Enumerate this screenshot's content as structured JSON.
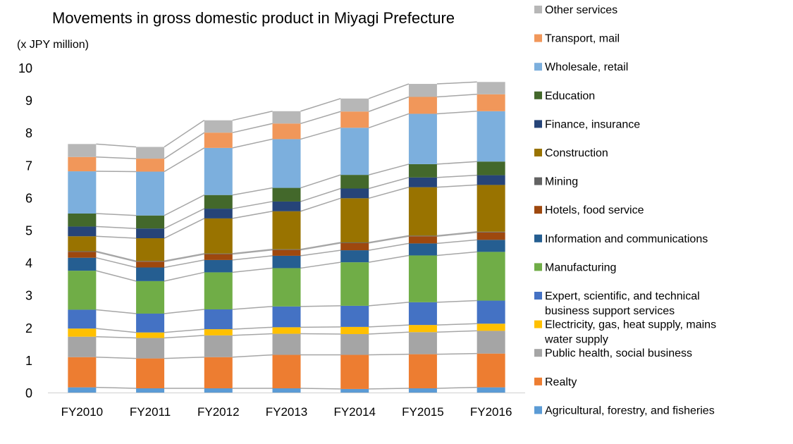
{
  "chart_data": {
    "type": "bar",
    "stacked": true,
    "series_lines": true,
    "title": "Movements in gross domestic product in Miyagi Prefecture",
    "unit_label": "(x JPY million)",
    "xlabel": "",
    "ylabel": "",
    "ylim": [
      0,
      10
    ],
    "yticks": [
      "0",
      "1",
      "2",
      "3",
      "4",
      "5",
      "6",
      "7",
      "8",
      "9",
      "10"
    ],
    "grid": false,
    "legend_position": "right",
    "categories": [
      "FY2010",
      "FY2011",
      "FY2012",
      "FY2013",
      "FY2014",
      "FY2015",
      "FY2016"
    ],
    "series": [
      {
        "name": "Agricultural, forestry, and fisheries",
        "color": "#5B9BD5",
        "values": [
          0.16,
          0.13,
          0.13,
          0.13,
          0.11,
          0.13,
          0.16
        ]
      },
      {
        "name": "Realty",
        "color": "#ED7D31",
        "values": [
          0.93,
          0.92,
          0.96,
          1.03,
          1.05,
          1.05,
          1.04
        ]
      },
      {
        "name": "Public health, social business",
        "color": "#A5A5A5",
        "values": [
          0.63,
          0.63,
          0.67,
          0.65,
          0.64,
          0.68,
          0.7
        ]
      },
      {
        "name": "Electricity, gas, heat supply, mains water supply",
        "color": "#FFC000",
        "values": [
          0.25,
          0.17,
          0.19,
          0.2,
          0.22,
          0.22,
          0.22
        ]
      },
      {
        "name": "Expert, scientific, and technical business support services",
        "color": "#4472C4",
        "values": [
          0.58,
          0.58,
          0.61,
          0.64,
          0.65,
          0.7,
          0.71
        ]
      },
      {
        "name": "Manufacturing",
        "color": "#70AD47",
        "values": [
          1.2,
          1.0,
          1.14,
          1.18,
          1.34,
          1.44,
          1.5
        ]
      },
      {
        "name": "Information and communications",
        "color": "#255E91",
        "values": [
          0.4,
          0.42,
          0.38,
          0.38,
          0.37,
          0.37,
          0.37
        ]
      },
      {
        "name": "Hotels, food service",
        "color": "#9E480E",
        "values": [
          0.18,
          0.18,
          0.18,
          0.18,
          0.22,
          0.22,
          0.23
        ]
      },
      {
        "name": "Mining",
        "color": "#636363",
        "values": [
          0.02,
          0.02,
          0.02,
          0.02,
          0.02,
          0.02,
          0.02
        ]
      },
      {
        "name": "Construction",
        "color": "#997300",
        "values": [
          0.46,
          0.7,
          1.08,
          1.17,
          1.36,
          1.49,
          1.44
        ]
      },
      {
        "name": "Finance, insurance",
        "color": "#264478",
        "values": [
          0.3,
          0.3,
          0.3,
          0.3,
          0.3,
          0.3,
          0.3
        ]
      },
      {
        "name": "Education",
        "color": "#43682B",
        "values": [
          0.4,
          0.4,
          0.42,
          0.42,
          0.42,
          0.41,
          0.42
        ]
      },
      {
        "name": "Wholesale, retail",
        "color": "#7CAFDD",
        "values": [
          1.3,
          1.35,
          1.45,
          1.5,
          1.45,
          1.55,
          1.55
        ]
      },
      {
        "name": "Transport, mail",
        "color": "#F1975A",
        "values": [
          0.44,
          0.4,
          0.47,
          0.48,
          0.5,
          0.52,
          0.52
        ]
      },
      {
        "name": "Other services",
        "color": "#B7B7B7",
        "values": [
          0.4,
          0.36,
          0.38,
          0.38,
          0.4,
          0.4,
          0.38
        ]
      }
    ]
  }
}
